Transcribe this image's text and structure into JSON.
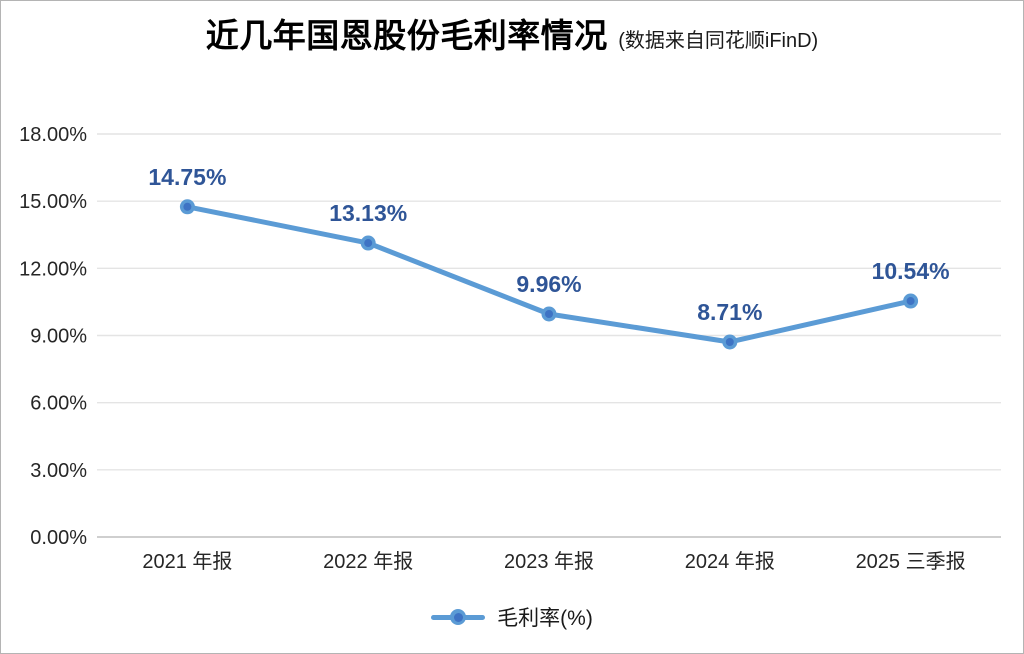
{
  "colors": {
    "line": "#5B9BD5",
    "marker_inner": "#3E73C4",
    "data_label": "#2F5597",
    "grid": "#E4E4E4",
    "axis_line": "#BFBFBF",
    "axis_text": "#262626"
  },
  "legend": {
    "label": "毛利率(%)"
  },
  "chart_data": {
    "type": "line",
    "title": "近几年国恩股份毛利率情况",
    "subtitle": "(数据来自同花顺iFinD)",
    "categories": [
      "2021 年报",
      "2022 年报",
      "2023 年报",
      "2024 年报",
      "2025 三季报"
    ],
    "series": [
      {
        "name": "毛利率(%)",
        "values": [
          14.75,
          13.13,
          9.96,
          8.71,
          10.54
        ]
      }
    ],
    "data_labels": [
      "14.75%",
      "13.13%",
      "9.96%",
      "8.71%",
      "10.54%"
    ],
    "y_ticks": [
      {
        "value": 0,
        "label": "0.00%"
      },
      {
        "value": 3,
        "label": "3.00%"
      },
      {
        "value": 6,
        "label": "6.00%"
      },
      {
        "value": 9,
        "label": "9.00%"
      },
      {
        "value": 12,
        "label": "12.00%"
      },
      {
        "value": 15,
        "label": "15.00%"
      },
      {
        "value": 18,
        "label": "18.00%"
      }
    ],
    "xlabel": "",
    "ylabel": "",
    "ylim": [
      0,
      18
    ],
    "grid": true,
    "legend_position": "bottom"
  }
}
